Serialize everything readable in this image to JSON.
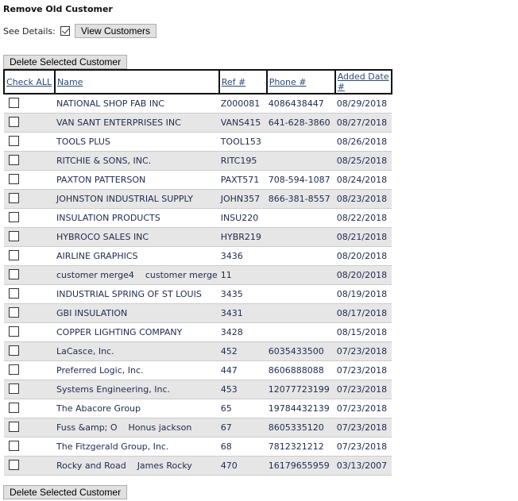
{
  "title": "Remove Old Customer",
  "see_details_label": "See Details:",
  "see_details_checked": true,
  "view_button": "View Customers",
  "delete_button": "Delete Selected Customer",
  "columns": [
    "Check ALL",
    "Name",
    "Ref #",
    "Phone #",
    "Added Date #"
  ],
  "rows": [
    {
      "name": "NATIONAL SHOP FAB INC",
      "ref": "Z000081",
      "phone": "4086438447",
      "date": "08/29/2018"
    },
    {
      "name": "VAN SANT ENTERPRISES INC",
      "ref": "VANS415",
      "phone": "641-628-3860",
      "date": "08/27/2018"
    },
    {
      "name": "TOOLS PLUS",
      "ref": "TOOL153",
      "phone": "",
      "date": "08/26/2018"
    },
    {
      "name": "RITCHIE & SONS, INC.",
      "ref": "RITC195",
      "phone": "",
      "date": "08/25/2018"
    },
    {
      "name": "PAXTON PATTERSON",
      "ref": "PAXT571",
      "phone": "708-594-1087",
      "date": "08/24/2018"
    },
    {
      "name": "JOHNSTON INDUSTRIAL SUPPLY",
      "ref": "JOHN357",
      "phone": "866-381-8557",
      "date": "08/23/2018"
    },
    {
      "name": "INSULATION PRODUCTS",
      "ref": "INSU220",
      "phone": "",
      "date": "08/22/2018"
    },
    {
      "name": "HYBROCO SALES INC",
      "ref": "HYBR219",
      "phone": "",
      "date": "08/21/2018"
    },
    {
      "name": "AIRLINE GRAPHICS",
      "ref": "3436",
      "phone": "",
      "date": "08/20/2018"
    },
    {
      "name": "customer merge4    customer merge",
      "ref": "11",
      "phone": "",
      "date": "08/20/2018"
    },
    {
      "name": "INDUSTRIAL SPRING OF ST LOUIS",
      "ref": "3435",
      "phone": "",
      "date": "08/19/2018"
    },
    {
      "name": "GBI INSULATION",
      "ref": "3431",
      "phone": "",
      "date": "08/17/2018"
    },
    {
      "name": "COPPER LIGHTING COMPANY",
      "ref": "3428",
      "phone": "",
      "date": "08/15/2018"
    },
    {
      "name": "LaCasce, Inc.",
      "ref": "452",
      "phone": "6035433500",
      "date": "07/23/2018"
    },
    {
      "name": "Preferred Logic, Inc.",
      "ref": "447",
      "phone": "8606888088",
      "date": "07/23/2018"
    },
    {
      "name": "Systems Engineering, Inc.",
      "ref": "453",
      "phone": "12077723199",
      "date": "07/23/2018"
    },
    {
      "name": "The Abacore Group",
      "ref": "65",
      "phone": "19784432139",
      "date": "07/23/2018"
    },
    {
      "name": "Fuss &amp; O    Honus jackson",
      "ref": "67",
      "phone": "8605335120",
      "date": "07/23/2018"
    },
    {
      "name": "The Fitzgerald Group, Inc.",
      "ref": "68",
      "phone": "7812321212",
      "date": "07/23/2018"
    },
    {
      "name": "Rocky and Road    James Rocky",
      "ref": "470",
      "phone": "16179655959",
      "date": "03/13/2007"
    }
  ]
}
